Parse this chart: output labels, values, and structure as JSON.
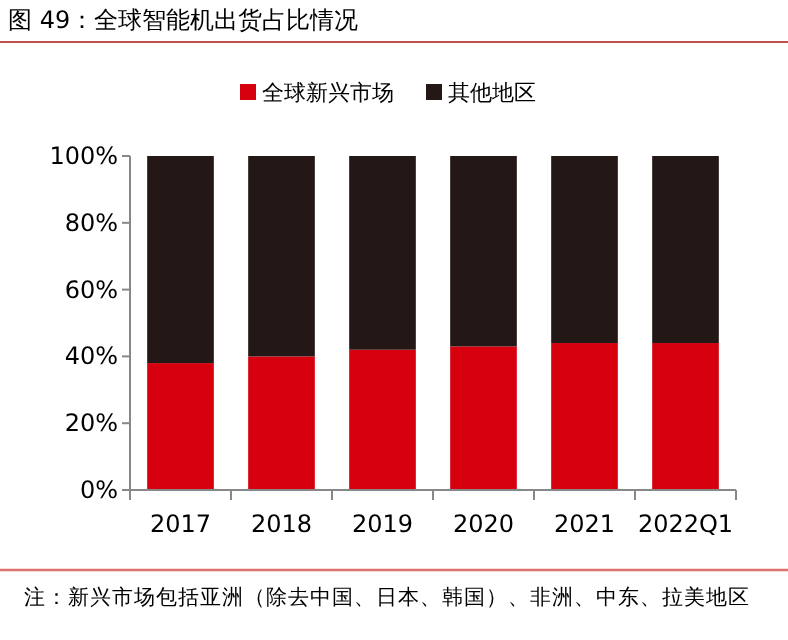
{
  "chart_data": {
    "type": "bar",
    "stacked": true,
    "title": "图 49：全球智能机出货占比情况",
    "categories": [
      "2017",
      "2018",
      "2019",
      "2020",
      "2021",
      "2022Q1"
    ],
    "series": [
      {
        "name": "全球新兴市场",
        "color": "#d7000f",
        "values": [
          38,
          40,
          42,
          43,
          44,
          44
        ]
      },
      {
        "name": "其他地区",
        "color": "#231815",
        "values": [
          62,
          60,
          58,
          57,
          56,
          56
        ]
      }
    ],
    "ylim": [
      0,
      100
    ],
    "yticks": [
      {
        "value": 0,
        "label": "0%"
      },
      {
        "value": 20,
        "label": "20%"
      },
      {
        "value": 40,
        "label": "40%"
      },
      {
        "value": 60,
        "label": "60%"
      },
      {
        "value": 80,
        "label": "80%"
      },
      {
        "value": 100,
        "label": "100%"
      }
    ],
    "legend": "top",
    "grid": false,
    "annotations": [
      "注：新兴市场包括亚洲（除去中国、日本、韩国）、非洲、中东、拉美地区"
    ]
  }
}
